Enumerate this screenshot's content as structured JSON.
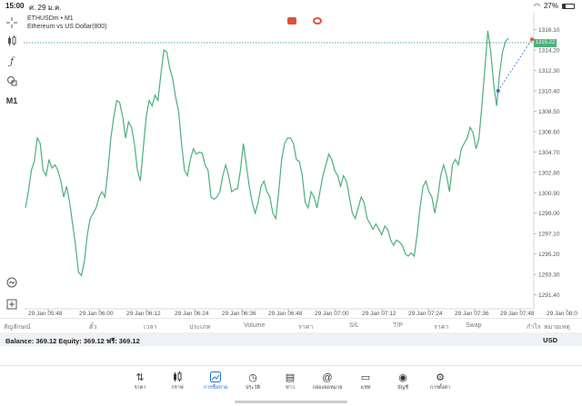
{
  "status": {
    "time": "15:00",
    "date": "ศ. 29 ม.ค.",
    "battery": "27%",
    "battery_level": 0.27
  },
  "chart": {
    "symbol_line": "ETHUSDm • M1",
    "description": "Ethereum vs US Dollar(800)",
    "current_price_tag": "1315.22",
    "y_ticks": [
      "1316.10",
      "1314.20",
      "1312.30",
      "1310.40",
      "1308.50",
      "1306.60",
      "1304.70",
      "1302.80",
      "1300.90",
      "1299.00",
      "1297.10",
      "1295.20",
      "1293.30",
      "1291.40"
    ],
    "x_ticks": [
      "29 Jan 05:48",
      "29 Jan 06:00",
      "29 Jan 06:12",
      "29 Jan 06:24",
      "29 Jan 06:36",
      "29 Jan 06:48",
      "29 Jan 07:00",
      "29 Jan 07:12",
      "29 Jan 07:24",
      "29 Jan 07:36",
      "29 Jan 07:48",
      "29 Jan 08:0"
    ],
    "line_color": "#4caf7d",
    "tools": [
      "crosshair-icon",
      "candle-icon",
      "function-icon",
      "shapes-icon"
    ],
    "tool_m1": "M1"
  },
  "chart_data": {
    "type": "line",
    "ylim": [
      1290.6,
      1317.0
    ],
    "y": [
      1299.5,
      1301.0,
      1303.0,
      1303.8,
      1306.0,
      1305.5,
      1303.0,
      1302.5,
      1304.0,
      1303.2,
      1303.5,
      1303.0,
      1302.0,
      1300.5,
      1301.5,
      1300.0,
      1298.0,
      1296.0,
      1293.5,
      1293.2,
      1294.5,
      1297.0,
      1298.5,
      1299.0,
      1299.5,
      1300.5,
      1301.0,
      1300.5,
      1303.0,
      1306.0,
      1308.0,
      1309.5,
      1309.3,
      1308.0,
      1306.0,
      1307.5,
      1307.0,
      1305.5,
      1303.0,
      1302.0,
      1305.0,
      1308.0,
      1309.5,
      1309.0,
      1310.0,
      1309.5,
      1312.0,
      1314.2,
      1314.0,
      1312.5,
      1311.5,
      1309.8,
      1308.5,
      1305.5,
      1303.0,
      1302.5,
      1304.0,
      1305.0,
      1304.5,
      1304.7,
      1304.6,
      1303.5,
      1303.0,
      1300.5,
      1300.3,
      1300.5,
      1301.0,
      1302.5,
      1303.5,
      1302.5,
      1301.0,
      1301.2,
      1301.3,
      1303.0,
      1305.5,
      1303.5,
      1301.5,
      1300.0,
      1299.0,
      1300.0,
      1301.5,
      1302.0,
      1301.0,
      1300.5,
      1299.0,
      1298.5,
      1301.0,
      1304.0,
      1305.5,
      1306.0,
      1306.0,
      1305.5,
      1304.0,
      1303.8,
      1302.5,
      1300.0,
      1299.5,
      1301.0,
      1300.5,
      1299.5,
      1301.0,
      1302.5,
      1303.5,
      1304.5,
      1304.0,
      1303.0,
      1302.5,
      1301.5,
      1302.5,
      1302.0,
      1300.5,
      1299.0,
      1298.5,
      1299.5,
      1300.5,
      1300.0,
      1298.5,
      1298.0,
      1297.5,
      1298.0,
      1297.5,
      1297.0,
      1297.8,
      1297.5,
      1296.5,
      1296.0,
      1296.5,
      1296.3,
      1296.0,
      1295.2,
      1295.0,
      1295.3,
      1295.0,
      1297.0,
      1299.5,
      1301.5,
      1302.0,
      1301.0,
      1300.5,
      1299.0,
      1300.5,
      1302.5,
      1303.5,
      1302.5,
      1301.0,
      1303.5,
      1304.0,
      1303.5,
      1305.0,
      1305.5,
      1306.0,
      1307.0,
      1306.5,
      1305.0,
      1306.0,
      1309.0,
      1312.5,
      1316.0,
      1314.0,
      1311.0,
      1309.0,
      1312.0,
      1314.0,
      1315.0,
      1315.3
    ],
    "markers": [
      {
        "x": 160.5,
        "y": 1310.4,
        "color": "#2c6fd1"
      },
      {
        "x": 172,
        "y": 1315.2,
        "color": "#d9533f"
      }
    ]
  },
  "columns": {
    "symbol": "สัญลักษณ์",
    "ticket": "ตั๋ว",
    "time": "เวลา",
    "type": "ประเภท",
    "volume": "Volume",
    "price": "ราคา",
    "sl": "S/L",
    "tp": "T/P",
    "price2": "ราคา",
    "swap": "Swap",
    "profit": "กำไร",
    "note": "หมายเหตุ"
  },
  "balance": {
    "text": "Balance: 369.12 Equity: 369.12 ฟรี: 369.12",
    "currency": "USD"
  },
  "nav": [
    {
      "label": "ราคา",
      "icon": "quotes-icon"
    },
    {
      "label": "กราฟ",
      "icon": "chart-icon"
    },
    {
      "label": "การซื้อขาย",
      "icon": "trade-icon"
    },
    {
      "label": "ประวัติ",
      "icon": "history-icon"
    },
    {
      "label": "ข่าว",
      "icon": "news-icon"
    },
    {
      "label": "กล่องจดหมาย",
      "icon": "mailbox-icon"
    },
    {
      "label": "แชท",
      "icon": "chat-icon"
    },
    {
      "label": "บัญชี",
      "icon": "account-icon"
    },
    {
      "label": "การตั้งค่า",
      "icon": "settings-icon"
    }
  ]
}
